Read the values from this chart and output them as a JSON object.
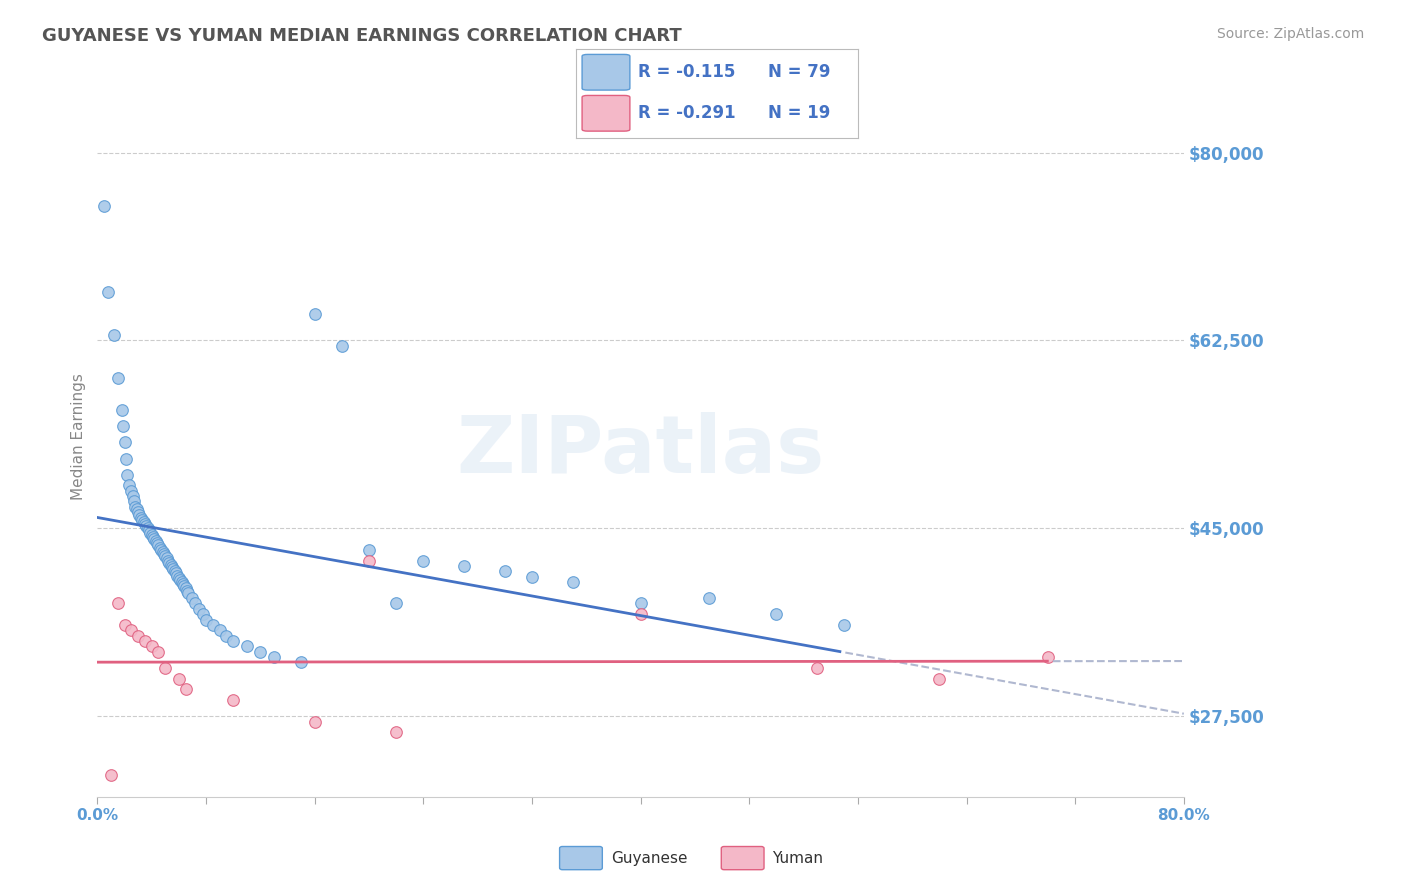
{
  "title": "GUYANESE VS YUMAN MEDIAN EARNINGS CORRELATION CHART",
  "source": "Source: ZipAtlas.com",
  "ylabel": "Median Earnings",
  "xlim": [
    0.0,
    0.8
  ],
  "ylim": [
    20000,
    87000
  ],
  "yticks": [
    27500,
    45000,
    62500,
    80000
  ],
  "ytick_labels": [
    "$27,500",
    "$45,000",
    "$62,500",
    "$80,000"
  ],
  "xticks": [
    0.0,
    0.08,
    0.16,
    0.24,
    0.32,
    0.4,
    0.48,
    0.56,
    0.64,
    0.72,
    0.8
  ],
  "xtick_labels": [
    "0.0%",
    "",
    "",
    "",
    "",
    "",
    "",
    "",
    "",
    "",
    "80.0%"
  ],
  "background_color": "#ffffff",
  "grid_color": "#cccccc",
  "title_color": "#555555",
  "axis_label_color": "#5b9bd5",
  "guyanese_color": "#a8c8e8",
  "yuman_color": "#f4b8c8",
  "guyanese_edge_color": "#5b9bd5",
  "yuman_edge_color": "#e06080",
  "trend_blue": "#4472c4",
  "trend_pink": "#e06080",
  "trend_dash_color": "#b0b8d0",
  "legend_r1": "R = -0.115",
  "legend_n1": "N = 79",
  "legend_r2": "R = -0.291",
  "legend_n2": "N = 19",
  "guyanese_x": [
    0.005,
    0.008,
    0.012,
    0.015,
    0.018,
    0.019,
    0.02,
    0.021,
    0.022,
    0.023,
    0.025,
    0.026,
    0.027,
    0.028,
    0.029,
    0.03,
    0.031,
    0.032,
    0.033,
    0.034,
    0.035,
    0.036,
    0.037,
    0.038,
    0.039,
    0.04,
    0.041,
    0.042,
    0.043,
    0.044,
    0.045,
    0.046,
    0.047,
    0.048,
    0.049,
    0.05,
    0.051,
    0.052,
    0.053,
    0.054,
    0.055,
    0.056,
    0.057,
    0.058,
    0.059,
    0.06,
    0.061,
    0.062,
    0.063,
    0.064,
    0.065,
    0.066,
    0.067,
    0.07,
    0.072,
    0.075,
    0.078,
    0.08,
    0.085,
    0.09,
    0.095,
    0.1,
    0.11,
    0.12,
    0.13,
    0.15,
    0.16,
    0.18,
    0.2,
    0.22,
    0.24,
    0.27,
    0.3,
    0.32,
    0.35,
    0.4,
    0.45,
    0.5,
    0.55
  ],
  "guyanese_y": [
    75000,
    67000,
    63000,
    59000,
    56000,
    54500,
    53000,
    51500,
    50000,
    49000,
    48500,
    48000,
    47500,
    47000,
    46800,
    46500,
    46200,
    46000,
    45800,
    45600,
    45400,
    45200,
    45000,
    44800,
    44600,
    44400,
    44200,
    44000,
    43800,
    43600,
    43400,
    43200,
    43000,
    42800,
    42600,
    42400,
    42200,
    42000,
    41800,
    41600,
    41400,
    41200,
    41000,
    40800,
    40600,
    40400,
    40200,
    40000,
    39800,
    39600,
    39400,
    39200,
    39000,
    38500,
    38000,
    37500,
    37000,
    36500,
    36000,
    35500,
    35000,
    34500,
    34000,
    33500,
    33000,
    32500,
    65000,
    62000,
    43000,
    38000,
    42000,
    41500,
    41000,
    40500,
    40000,
    38000,
    38500,
    37000,
    36000
  ],
  "yuman_x": [
    0.01,
    0.015,
    0.02,
    0.025,
    0.03,
    0.035,
    0.04,
    0.045,
    0.05,
    0.06,
    0.065,
    0.1,
    0.16,
    0.2,
    0.22,
    0.4,
    0.53,
    0.62,
    0.7
  ],
  "yuman_y": [
    22000,
    38000,
    36000,
    35500,
    35000,
    34500,
    34000,
    33500,
    32000,
    31000,
    30000,
    29000,
    27000,
    42000,
    26000,
    37000,
    32000,
    31000,
    33000
  ]
}
